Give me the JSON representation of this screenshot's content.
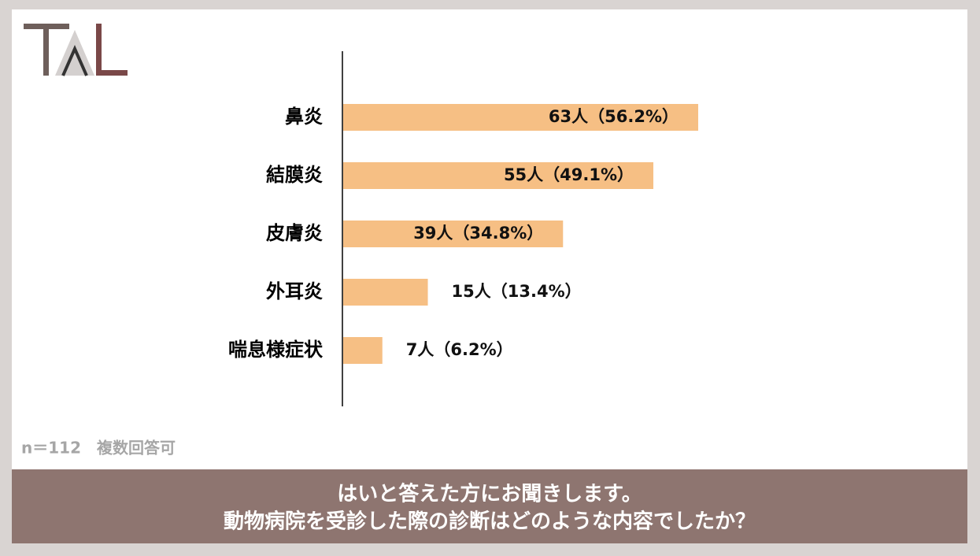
{
  "chart_data": {
    "type": "hbar",
    "categories": [
      "鼻炎",
      "結膜炎",
      "皮膚炎",
      "外耳炎",
      "喘息様症状"
    ],
    "values": [
      56.2,
      49.1,
      34.8,
      13.4,
      6.2
    ],
    "value_labels": [
      "63人（56.2%）",
      "55人（49.1%）",
      "39人（34.8%）",
      "15人（13.4%）",
      "7人（6.2%）"
    ],
    "color": "#f6bf84",
    "note": "n＝112　複数回答可",
    "question": [
      "はいと答えた方にお聞きします。",
      "動物病院を受診した際の診断はどのような内容でしたか？"
    ]
  }
}
